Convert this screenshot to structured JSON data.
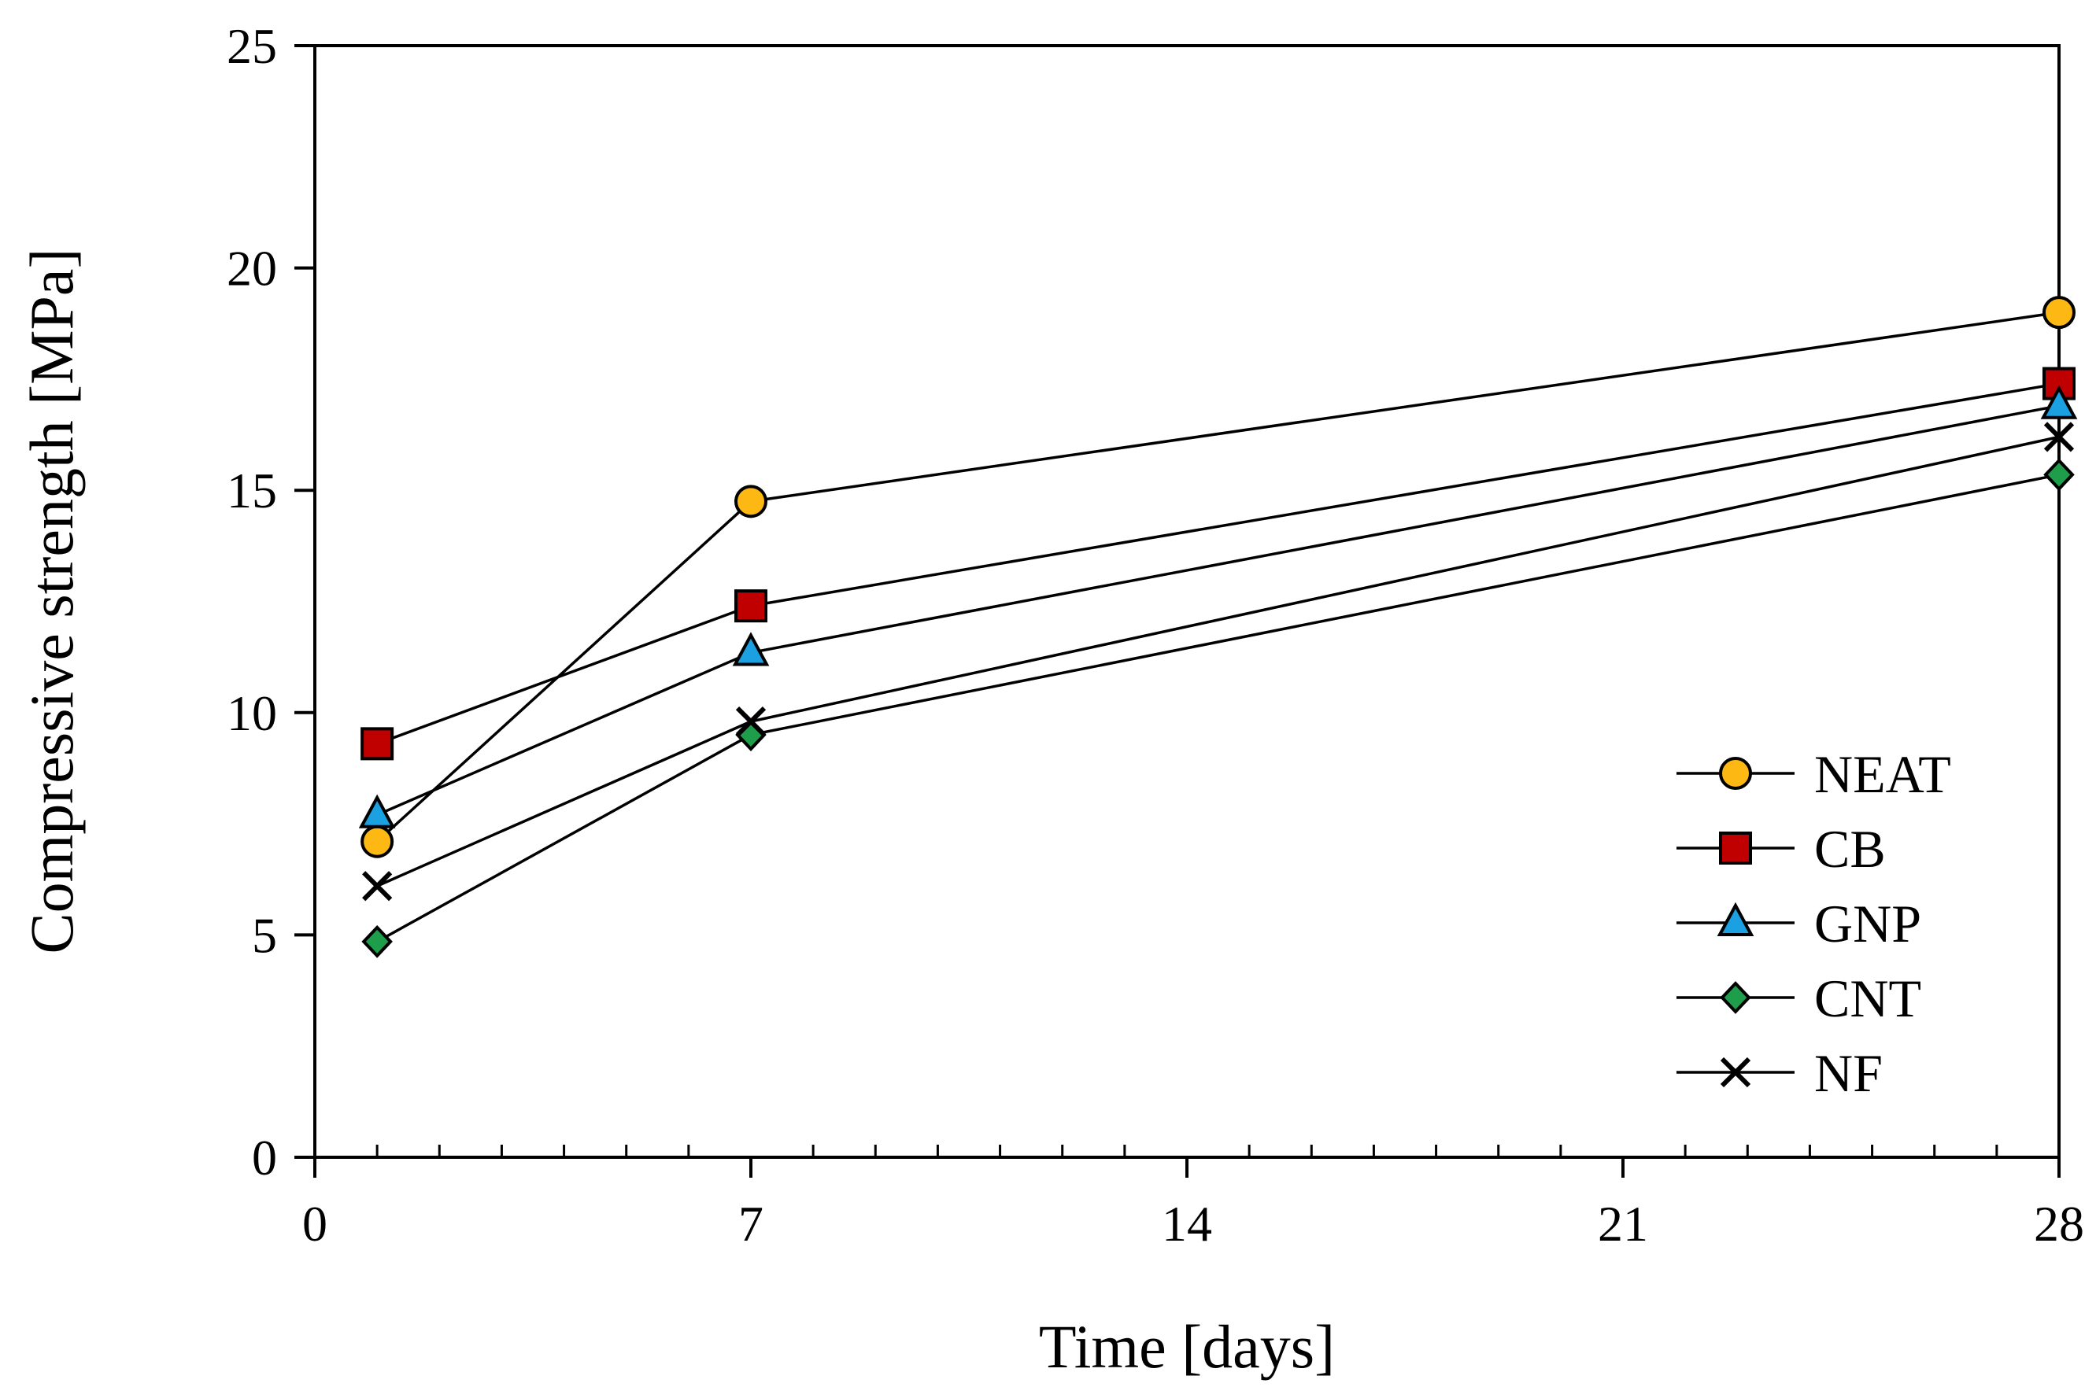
{
  "chart_data": {
    "type": "line",
    "title": "",
    "xlabel": "Time [days]",
    "ylabel": "Compressive strength [MPa]",
    "xlim": [
      0,
      28
    ],
    "ylim": [
      0,
      25
    ],
    "xticks": [
      0,
      7,
      14,
      21,
      28
    ],
    "yticks": [
      0,
      5,
      10,
      15,
      20,
      25
    ],
    "x_minor_step": 1,
    "grid": false,
    "legend_position": "right",
    "x": [
      1,
      7,
      28
    ],
    "series": [
      {
        "name": "NEAT",
        "marker": "circle",
        "color": "#FDB813",
        "values": [
          7.1,
          14.75,
          19.0
        ]
      },
      {
        "name": "CB",
        "marker": "square",
        "color": "#C00000",
        "values": [
          9.3,
          12.4,
          17.4
        ]
      },
      {
        "name": "GNP",
        "marker": "triangle",
        "color": "#1BA1E2",
        "values": [
          7.7,
          11.35,
          16.9
        ]
      },
      {
        "name": "CNT",
        "marker": "diamond",
        "color": "#1E9E4A",
        "values": [
          4.85,
          9.5,
          15.35
        ]
      },
      {
        "name": "NF",
        "marker": "x",
        "color": "#000000",
        "values": [
          6.1,
          9.8,
          16.2
        ]
      }
    ]
  }
}
